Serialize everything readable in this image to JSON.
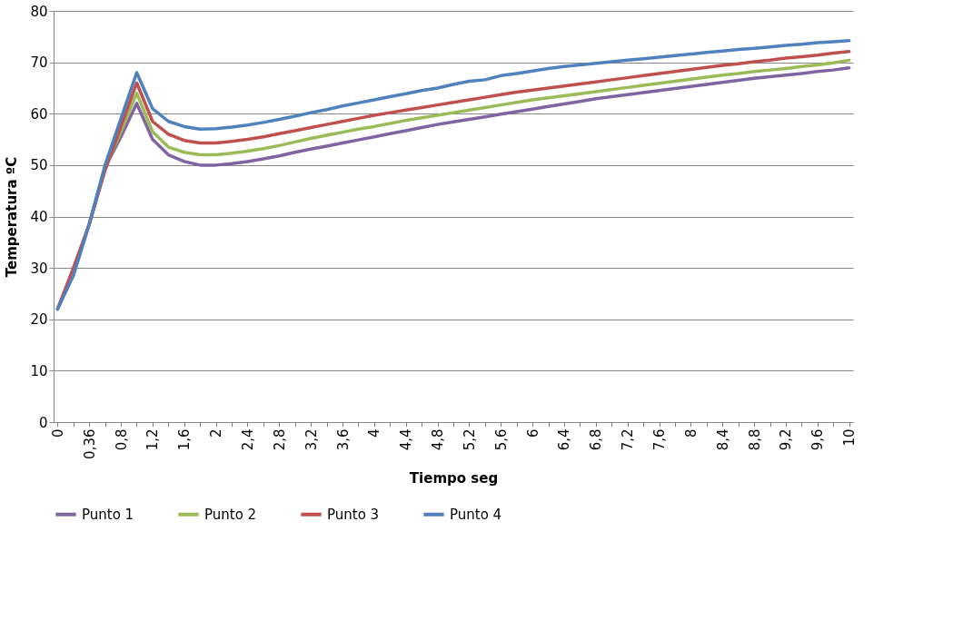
{
  "chart_data": {
    "type": "line",
    "xlabel": "Tiempo seg",
    "ylabel": "Temperatura  ºC",
    "categories": [
      "0",
      null,
      "0,36",
      null,
      "0,8",
      null,
      "1,2",
      null,
      "1,6",
      null,
      "2",
      null,
      "2,4",
      null,
      "2,8",
      null,
      "3,2",
      null,
      "3,6",
      null,
      "4",
      null,
      "4,4",
      null,
      "4,8",
      null,
      "5,2",
      null,
      "5,6",
      null,
      "6",
      null,
      "6,4",
      null,
      "6,8",
      null,
      "7,2",
      null,
      "7,6",
      null,
      "8",
      null,
      "8,4",
      null,
      "8,8",
      null,
      "9,2",
      null,
      "9,6",
      null,
      "10"
    ],
    "series": [
      {
        "name": "Punto 1",
        "color": "#8064a2",
        "values": [
          22,
          29,
          38.5,
          49.5,
          55.5,
          62,
          55,
          52,
          50.7,
          50,
          50,
          50.3,
          50.7,
          51.2,
          51.8,
          52.5,
          53.1,
          53.7,
          54.3,
          54.9,
          55.5,
          56.1,
          56.7,
          57.3,
          57.9,
          58.4,
          58.9,
          59.4,
          59.9,
          60.4,
          60.9,
          61.4,
          61.9,
          62.4,
          62.9,
          63.3,
          63.7,
          64.1,
          64.5,
          64.9,
          65.3,
          65.7,
          66.1,
          66.5,
          66.9,
          67.2,
          67.5,
          67.8,
          68.2,
          68.5,
          68.9
        ]
      },
      {
        "name": "Punto 2",
        "color": "#9bbb59",
        "values": [
          null,
          null,
          38.5,
          49.5,
          56.5,
          64,
          56.5,
          53.5,
          52.5,
          52,
          52,
          52.3,
          52.7,
          53.2,
          53.8,
          54.5,
          55.2,
          55.8,
          56.4,
          57,
          57.5,
          58.1,
          58.7,
          59.2,
          59.7,
          60.2,
          60.7,
          61.2,
          61.7,
          62.2,
          62.7,
          63.1,
          63.5,
          63.9,
          64.3,
          64.7,
          65.1,
          65.5,
          65.9,
          66.3,
          66.7,
          67.1,
          67.5,
          67.8,
          68.2,
          68.5,
          68.8,
          69.2,
          69.5,
          69.9,
          70.4
        ]
      },
      {
        "name": "Punto 3",
        "color": "#c0504d",
        "values": [
          22,
          30,
          38.5,
          49,
          57.5,
          66,
          58.5,
          56,
          54.8,
          54.3,
          54.3,
          54.6,
          55,
          55.5,
          56.1,
          56.7,
          57.3,
          57.9,
          58.5,
          59.1,
          59.7,
          60.2,
          60.7,
          61.2,
          61.7,
          62.2,
          62.7,
          63.2,
          63.7,
          64.2,
          64.6,
          65,
          65.4,
          65.8,
          66.2,
          66.6,
          67,
          67.4,
          67.8,
          68.2,
          68.6,
          69,
          69.4,
          69.7,
          70.1,
          70.4,
          70.8,
          71.1,
          71.4,
          71.8,
          72.1
        ]
      },
      {
        "name": "Punto 4",
        "color": "#4f81bd",
        "values": [
          22,
          28.5,
          38.5,
          50,
          59,
          68,
          61,
          58.5,
          57.5,
          57,
          57.1,
          57.4,
          57.8,
          58.3,
          58.9,
          59.5,
          60.2,
          60.8,
          61.5,
          62.1,
          62.7,
          63.3,
          63.9,
          64.5,
          65,
          65.7,
          66.3,
          66.6,
          67.4,
          67.8,
          68.3,
          68.8,
          69.2,
          69.5,
          69.8,
          70.1,
          70.4,
          70.7,
          71,
          71.3,
          71.6,
          71.9,
          72.2,
          72.5,
          72.7,
          73,
          73.3,
          73.5,
          73.8,
          74,
          74.2
        ]
      }
    ],
    "ylim": [
      0,
      80
    ],
    "yticks": [
      0,
      10,
      20,
      30,
      40,
      50,
      60,
      70,
      80
    ],
    "grid": "y",
    "legend": "bottom",
    "marker": "none",
    "line_style": "solid"
  }
}
